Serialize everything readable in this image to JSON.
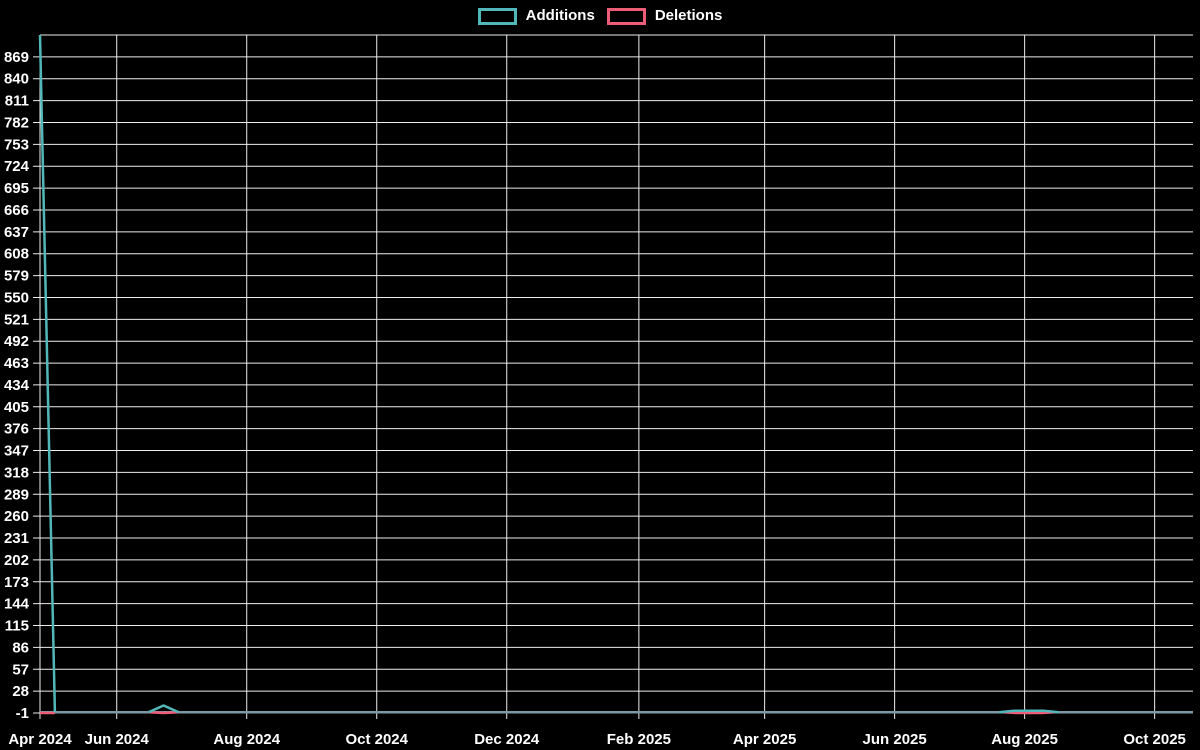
{
  "page": {
    "background": "#000000"
  },
  "legend": {
    "items": [
      {
        "label": "Additions",
        "color": "#52b7b9"
      },
      {
        "label": "Deletions",
        "color": "#ee5d77"
      }
    ]
  },
  "chart_data": {
    "type": "line",
    "legend_position": "top-center",
    "grid": {
      "show": true,
      "color": "#ededed",
      "text_color": "#ffffff"
    },
    "baseline": {
      "value": 0,
      "color": "#7e99a6"
    },
    "x_axis": {
      "type": "time",
      "range": [
        "2024-04-26",
        "2025-10-19"
      ],
      "ticks": [
        {
          "date": "2024-04-26",
          "label": "Apr 2024"
        },
        {
          "date": "2024-06-01",
          "label": "Jun 2024"
        },
        {
          "date": "2024-08-01",
          "label": "Aug 2024"
        },
        {
          "date": "2024-10-01",
          "label": "Oct 2024"
        },
        {
          "date": "2024-12-01",
          "label": "Dec 2024"
        },
        {
          "date": "2025-02-01",
          "label": "Feb 2025"
        },
        {
          "date": "2025-04-01",
          "label": "Apr 2025"
        },
        {
          "date": "2025-06-01",
          "label": "Jun 2025"
        },
        {
          "date": "2025-08-01",
          "label": "Aug 2025"
        },
        {
          "date": "2025-10-01",
          "label": "Oct 2025"
        }
      ]
    },
    "y_axis": {
      "min": -1,
      "max": 898,
      "tick_step": 29,
      "ticks": [
        -1,
        28,
        57,
        86,
        115,
        144,
        173,
        202,
        231,
        260,
        289,
        318,
        347,
        376,
        405,
        434,
        463,
        492,
        521,
        550,
        579,
        608,
        637,
        666,
        695,
        724,
        753,
        782,
        811,
        840,
        869
      ]
    },
    "series": [
      {
        "name": "Additions",
        "color": "#52b7b9",
        "segments": [
          [
            [
              "2024-04-26",
              898
            ],
            [
              "2024-05-03",
              0
            ]
          ],
          [
            [
              "2024-06-16",
              0
            ],
            [
              "2024-06-23",
              9
            ],
            [
              "2024-06-30",
              0
            ]
          ],
          [
            [
              "2025-07-20",
              0
            ],
            [
              "2025-07-27",
              2
            ],
            [
              "2025-08-10",
              2
            ],
            [
              "2025-08-17",
              0
            ]
          ]
        ]
      },
      {
        "name": "Deletions",
        "color": "#ee5d77",
        "plotted_as": "negative values below zero line",
        "segments": [
          [
            [
              "2024-04-26",
              -1
            ],
            [
              "2024-05-03",
              -1
            ]
          ],
          [
            [
              "2024-06-16",
              0
            ],
            [
              "2024-06-23",
              -1
            ],
            [
              "2024-06-30",
              0
            ]
          ],
          [
            [
              "2025-07-22",
              0
            ],
            [
              "2025-07-28",
              -1
            ],
            [
              "2025-08-09",
              -1
            ],
            [
              "2025-08-15",
              0
            ]
          ]
        ]
      }
    ]
  }
}
